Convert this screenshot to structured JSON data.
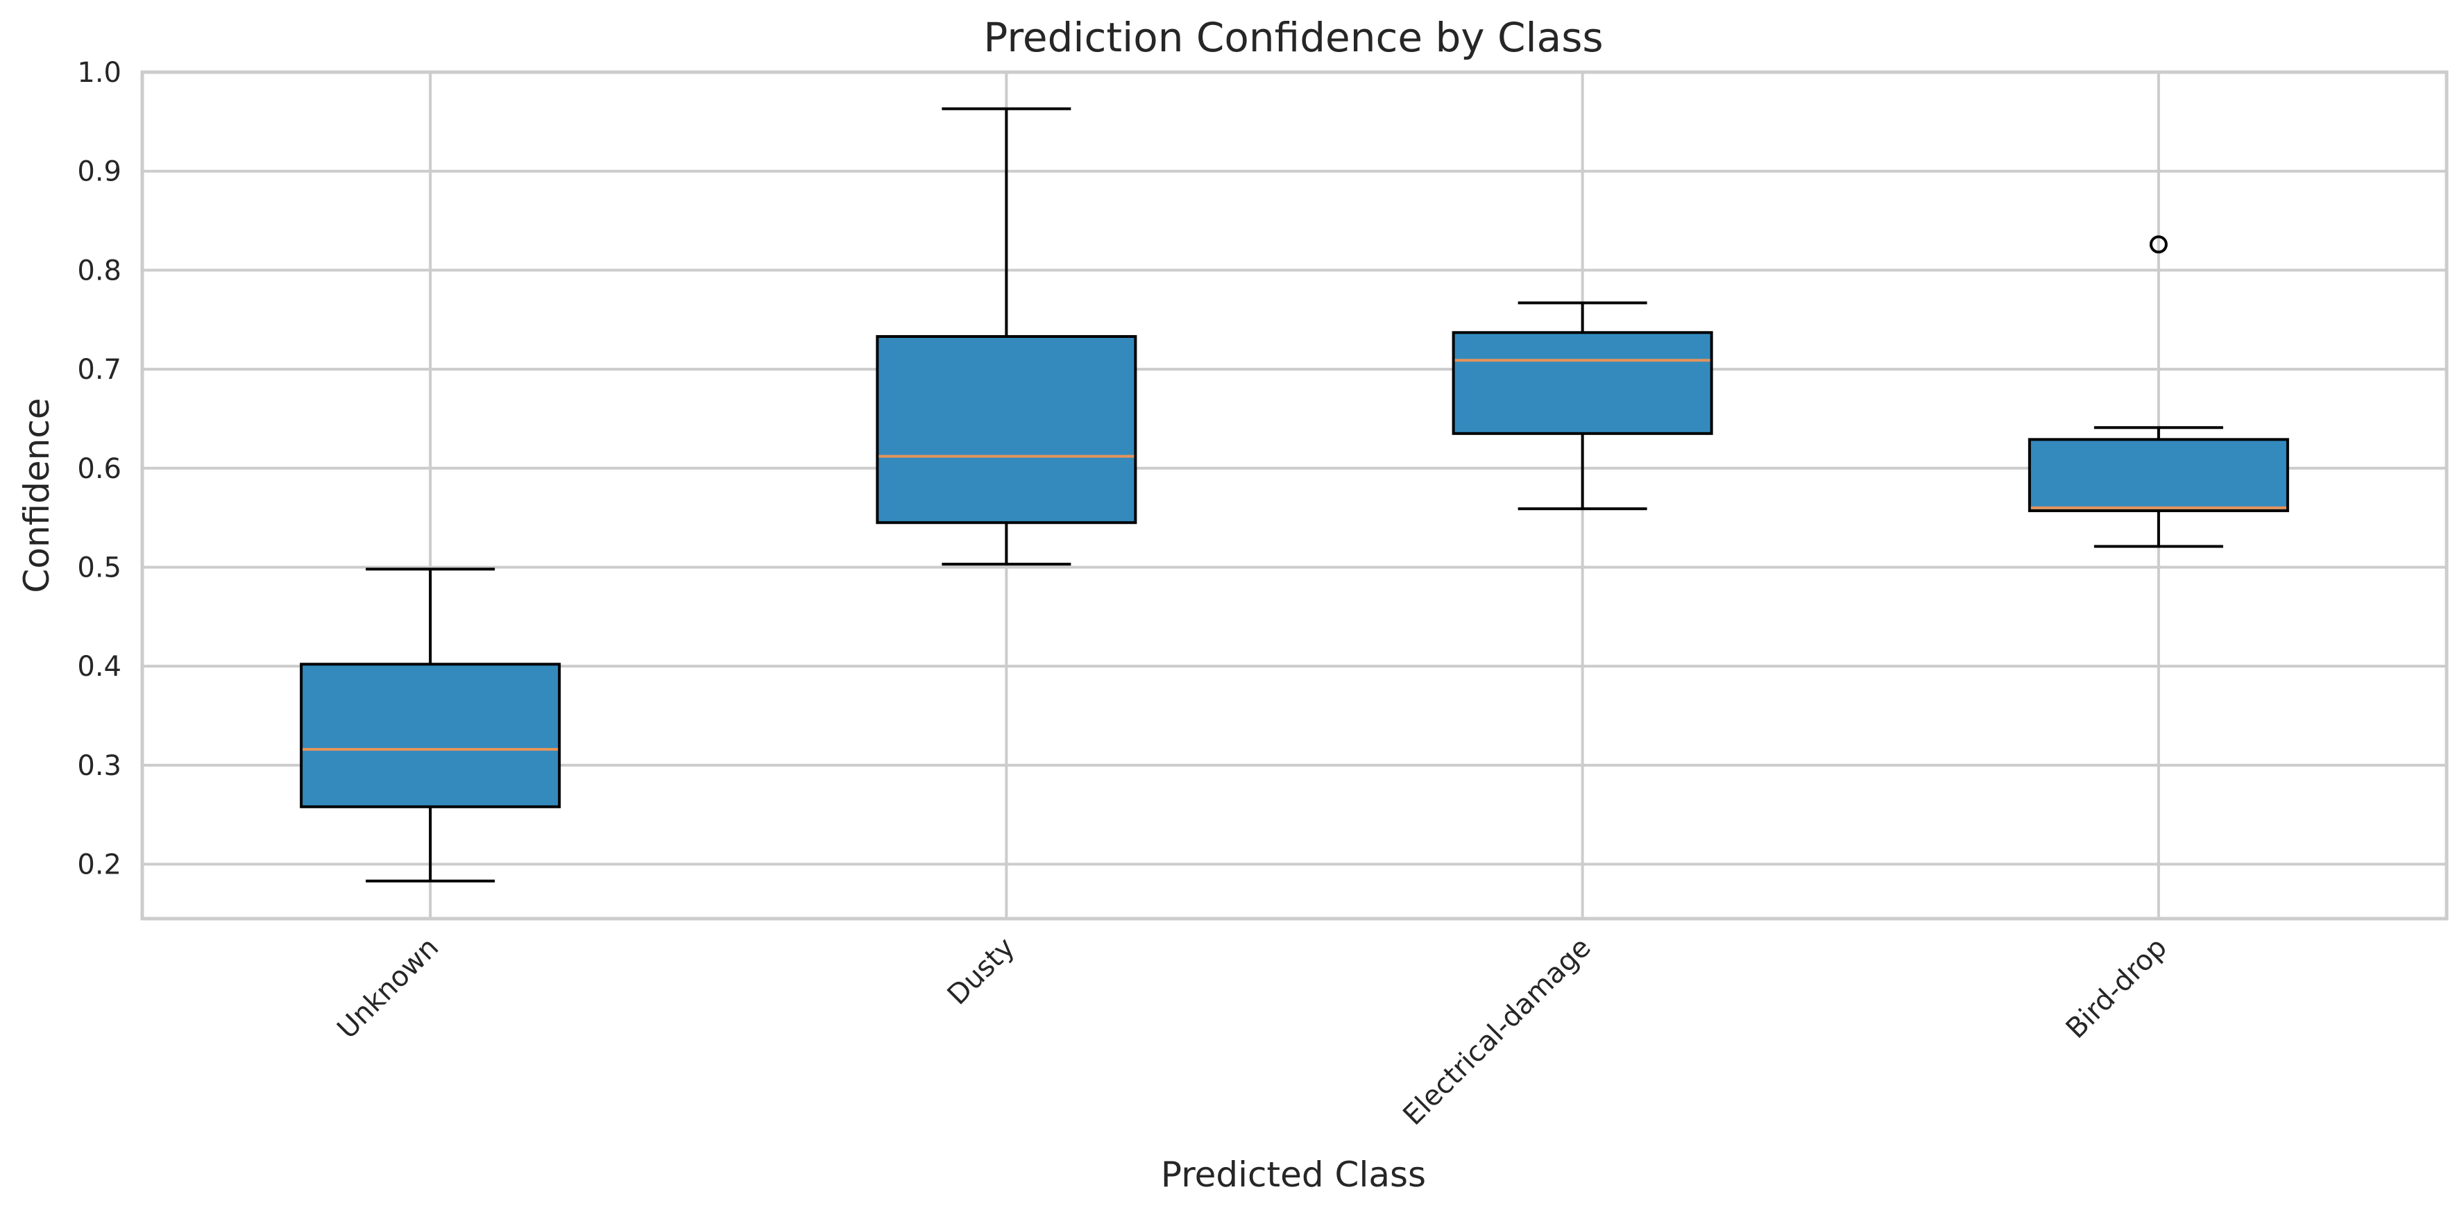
{
  "chart_data": {
    "type": "box",
    "title": "Prediction Confidence by Class",
    "xlabel": "Predicted Class",
    "ylabel": "Confidence",
    "ylim": [
      0.145,
      1.0
    ],
    "yticks": [
      0.2,
      0.3,
      0.4,
      0.5,
      0.6,
      0.7,
      0.8,
      0.9,
      1.0
    ],
    "ytick_labels": [
      "0.2",
      "0.3",
      "0.4",
      "0.5",
      "0.6",
      "0.7",
      "0.8",
      "0.9",
      "1.0"
    ],
    "grid": true,
    "categories": [
      "Unknown",
      "Dusty",
      "Electrical-damage",
      "Bird-drop"
    ],
    "boxes": [
      {
        "whisker_low": 0.183,
        "q1": 0.258,
        "median": 0.316,
        "q3": 0.402,
        "whisker_high": 0.498,
        "outliers": []
      },
      {
        "whisker_low": 0.503,
        "q1": 0.545,
        "median": 0.612,
        "q3": 0.733,
        "whisker_high": 0.963,
        "outliers": []
      },
      {
        "whisker_low": 0.559,
        "q1": 0.635,
        "median": 0.709,
        "q3": 0.737,
        "whisker_high": 0.767,
        "outliers": []
      },
      {
        "whisker_low": 0.521,
        "q1": 0.557,
        "median": 0.56,
        "q3": 0.629,
        "whisker_high": 0.641,
        "outliers": [
          0.826
        ]
      }
    ],
    "colors": {
      "box_fill": "#348abd",
      "median": "#e5935a",
      "edge": "#000000",
      "grid": "#cccccc"
    }
  }
}
